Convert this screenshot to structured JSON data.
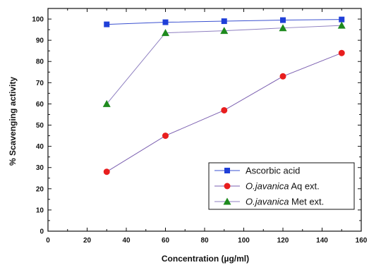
{
  "chart_data": {
    "type": "line",
    "xlabel": "Concentration (µg/ml)",
    "ylabel": "% Scavenging activity",
    "xlim": [
      0,
      160
    ],
    "ylim": [
      0,
      105
    ],
    "x_ticks": [
      "0",
      "20",
      "40",
      "60",
      "80",
      "100",
      "120",
      "140",
      "160"
    ],
    "y_ticks": [
      "0",
      "10",
      "20",
      "30",
      "40",
      "50",
      "60",
      "70",
      "80",
      "90",
      "100"
    ],
    "grid": false,
    "legend_position": "bottom-right",
    "x": [
      30,
      60,
      90,
      120,
      150
    ],
    "series": [
      {
        "name": "Ascorbic acid",
        "name_italic": "",
        "name_rest": "Ascorbic acid",
        "marker": "square",
        "color": "#1f3fd8",
        "line_color": "#3a50d0",
        "values": [
          97.5,
          98.5,
          99,
          99.5,
          99.8
        ]
      },
      {
        "name": "O.javanica Aq ext.",
        "name_italic": "O.javanica",
        "name_rest": " Aq ext.",
        "marker": "circle",
        "color": "#e81e1e",
        "line_color": "#7b5fb0",
        "values": [
          28,
          45,
          57,
          73,
          84
        ]
      },
      {
        "name": "O.javanica Met ext.",
        "name_italic": "O.javanica",
        "name_rest": " Met ext.",
        "marker": "triangle",
        "color": "#1e8a1e",
        "line_color": "#8e7fc0",
        "values": [
          60,
          93.5,
          94.5,
          95.8,
          97
        ]
      }
    ]
  }
}
